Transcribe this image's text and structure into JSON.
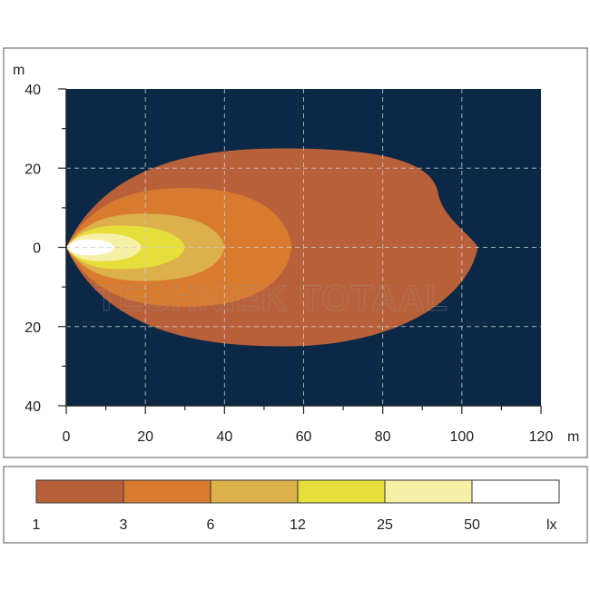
{
  "chart_data": {
    "type": "area",
    "x_unit": "m",
    "y_unit": "m",
    "xlim": [
      0,
      120
    ],
    "ylim": [
      -40,
      40
    ],
    "x_ticks": [
      "0",
      "20",
      "40",
      "60",
      "80",
      "100",
      "120"
    ],
    "y_ticks": [
      "40",
      "20",
      "0",
      "20",
      "40"
    ],
    "grid": true,
    "watermark": "TECHNIEK TOTAAL",
    "zones": [
      {
        "lux": "1",
        "color": "#b8603a",
        "reach_m": 104,
        "half_width_m": 25,
        "widest_at_m": 55
      },
      {
        "lux": "3",
        "color": "#d97b2e",
        "reach_m": 57,
        "half_width_m": 15,
        "widest_at_m": 30
      },
      {
        "lux": "6",
        "color": "#dcb04a",
        "reach_m": 40,
        "half_width_m": 8.5,
        "widest_at_m": 20
      },
      {
        "lux": "12",
        "color": "#e6de3a",
        "reach_m": 30,
        "half_width_m": 5.5,
        "widest_at_m": 14
      },
      {
        "lux": "25",
        "color": "#f6f0a6",
        "reach_m": 19,
        "half_width_m": 3.5,
        "widest_at_m": 9
      },
      {
        "lux": "50",
        "color": "#ffffff",
        "reach_m": 12,
        "half_width_m": 2,
        "widest_at_m": 6
      }
    ],
    "legend": {
      "labels": [
        "1",
        "3",
        "6",
        "12",
        "25",
        "50"
      ],
      "unit": "lx",
      "colors": [
        "#b8603a",
        "#d97b2e",
        "#dcb04a",
        "#e6de3a",
        "#f6f0a6",
        "#ffffff"
      ]
    }
  },
  "colors": {
    "plot_background": "#0b2846",
    "grid": "#c9cfd6",
    "frame": "#555555"
  }
}
